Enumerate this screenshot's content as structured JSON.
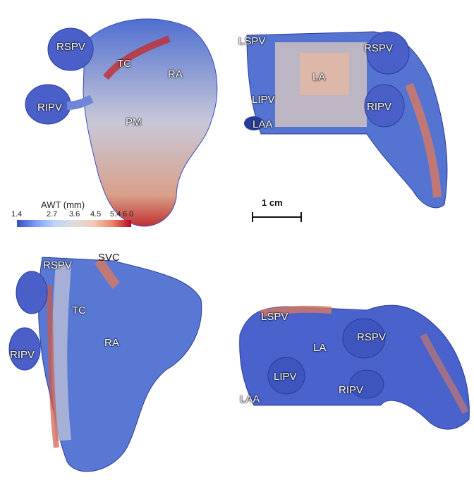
{
  "panels": {
    "top_left": {
      "labels": [
        "RSPV",
        "TC",
        "RA",
        "RIPV",
        "PM"
      ]
    },
    "top_right": {
      "labels": [
        "LSPV",
        "RSPV",
        "LA",
        "LIPV",
        "RIPV",
        "LAA"
      ]
    },
    "bottom_left": {
      "labels": [
        "RSPV",
        "SVC",
        "TC",
        "RA",
        "RIPV"
      ]
    },
    "bottom_right": {
      "labels": [
        "LSPV",
        "RSPV",
        "LA",
        "LIPV",
        "RIPV",
        "LAA"
      ]
    }
  },
  "colorbar": {
    "title": "AWT (mm)",
    "ticks": [
      "1.4",
      "2.7",
      "3.6",
      "4.5",
      "5.4",
      "6.0"
    ],
    "colors": {
      "low": "#3a4cc0",
      "mid": "#dddddd",
      "high": "#b40426"
    }
  },
  "scale_bar": {
    "label": "1 cm"
  }
}
